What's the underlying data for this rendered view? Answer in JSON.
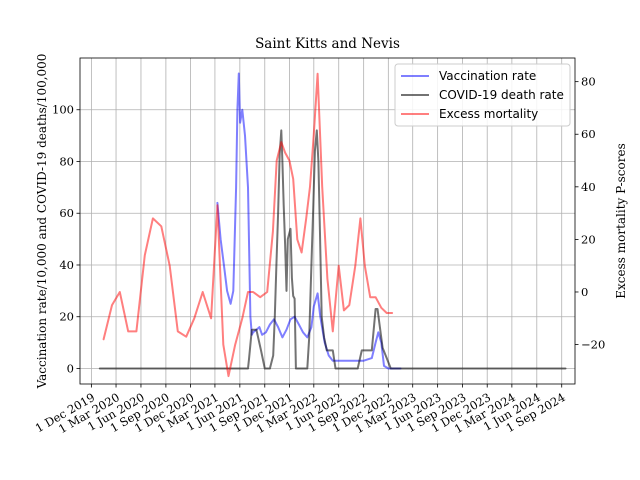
{
  "chart_data": {
    "type": "line",
    "title": "Saint Kitts and Nevis",
    "ylabel_left": "Vaccination rate/10,000 and COVID-19 deaths/100,000",
    "ylabel_right": "Excess mortality P-scores",
    "xlabel": "",
    "grid": true,
    "legend_position": "top-right",
    "xlim": [
      "2019-10-20",
      "2024-10-20"
    ],
    "ylim_left": [
      -6,
      120
    ],
    "ylim_right": [
      -35,
      89
    ],
    "x_ticks": [
      "1 Dec 2019",
      "1 Mar 2020",
      "1 Jun 2020",
      "1 Sep 2020",
      "1 Dec 2020",
      "1 Mar 2021",
      "1 Jun 2021",
      "1 Sep 2021",
      "1 Dec 2021",
      "1 Mar 2022",
      "1 Jun 2022",
      "1 Sep 2022",
      "1 Dec 2022",
      "1 Mar 2023",
      "1 Jun 2023",
      "1 Sep 2023",
      "1 Dec 2023",
      "1 Mar 2024",
      "1 Jun 2024",
      "1 Sep 2024"
    ],
    "x_tick_dates": [
      "2019-12-01",
      "2020-03-01",
      "2020-06-01",
      "2020-09-01",
      "2020-12-01",
      "2021-03-01",
      "2021-06-01",
      "2021-09-01",
      "2021-12-01",
      "2022-03-01",
      "2022-06-01",
      "2022-09-01",
      "2022-12-01",
      "2023-03-01",
      "2023-06-01",
      "2023-09-01",
      "2023-12-01",
      "2024-03-01",
      "2024-06-01",
      "2024-09-01"
    ],
    "y_ticks_left": [
      0,
      20,
      40,
      60,
      80,
      100
    ],
    "y_ticks_right": [
      -20,
      0,
      20,
      40,
      60,
      80
    ],
    "series": [
      {
        "name": "Vaccination rate",
        "axis": "left",
        "color": "#0000ff",
        "opacity": 0.5,
        "x": [
          "2021-03-10",
          "2021-03-22",
          "2021-04-03",
          "2021-04-15",
          "2021-04-28",
          "2021-05-08",
          "2021-05-18",
          "2021-05-23",
          "2021-05-28",
          "2021-06-02",
          "2021-06-10",
          "2021-06-20",
          "2021-07-01",
          "2021-07-10",
          "2021-07-15",
          "2021-07-20",
          "2021-08-01",
          "2021-08-12",
          "2021-08-22",
          "2021-09-05",
          "2021-09-20",
          "2021-10-05",
          "2021-10-20",
          "2021-11-05",
          "2021-11-20",
          "2021-12-05",
          "2021-12-20",
          "2022-01-05",
          "2022-01-20",
          "2022-02-05",
          "2022-02-20",
          "2022-03-01",
          "2022-03-15",
          "2022-03-25",
          "2022-04-10",
          "2022-04-25",
          "2022-05-10",
          "2022-06-01",
          "2022-07-01",
          "2022-08-01",
          "2022-09-01",
          "2022-10-01",
          "2022-10-15",
          "2022-10-25",
          "2022-11-05",
          "2022-11-15",
          "2022-12-01",
          "2023-01-15"
        ],
        "values": [
          64,
          50,
          40,
          30,
          25,
          30,
          70,
          100,
          114,
          95,
          100,
          90,
          70,
          20,
          13,
          14,
          15,
          16,
          13,
          14,
          17,
          19,
          16,
          12,
          15,
          19,
          20,
          17,
          14,
          12,
          16,
          24,
          29,
          20,
          10,
          5,
          3,
          3,
          3,
          3,
          3,
          4,
          10,
          14,
          10,
          1,
          0,
          0
        ]
      },
      {
        "name": "COVID-19 death rate",
        "axis": "left",
        "color": "#000000",
        "opacity": 0.55,
        "x": [
          "2020-01-01",
          "2021-07-01",
          "2021-07-05",
          "2021-07-15",
          "2021-08-01",
          "2021-08-18",
          "2021-09-01",
          "2021-09-20",
          "2021-10-02",
          "2021-10-08",
          "2021-10-14",
          "2021-10-20",
          "2021-10-26",
          "2021-11-01",
          "2021-11-05",
          "2021-11-10",
          "2021-11-15",
          "2021-11-20",
          "2021-11-25",
          "2021-12-05",
          "2021-12-10",
          "2021-12-15",
          "2021-12-20",
          "2021-12-25",
          "2022-01-10",
          "2022-02-05",
          "2022-02-12",
          "2022-02-17",
          "2022-02-22",
          "2022-02-27",
          "2022-03-05",
          "2022-03-12",
          "2022-03-18",
          "2022-03-24",
          "2022-03-30",
          "2022-04-08",
          "2022-04-18",
          "2022-05-10",
          "2022-05-20",
          "2022-06-10",
          "2022-07-20",
          "2022-08-10",
          "2022-08-25",
          "2022-09-10",
          "2022-10-01",
          "2022-10-15",
          "2022-10-22",
          "2022-11-10",
          "2022-12-10",
          "2023-06-01",
          "2024-09-15"
        ],
        "values": [
          0,
          0,
          4,
          15,
          15,
          7,
          0,
          0,
          5,
          20,
          40,
          60,
          83,
          92,
          80,
          63,
          48,
          30,
          50,
          54,
          35,
          28,
          27,
          0,
          0,
          0,
          12,
          30,
          46,
          63,
          84,
          92,
          80,
          52,
          20,
          12,
          7,
          7,
          0,
          0,
          0,
          0,
          7,
          7,
          7,
          23,
          23,
          8,
          0,
          0,
          0
        ]
      },
      {
        "name": "Excess mortality",
        "axis": "right",
        "color": "#ff0000",
        "opacity": 0.5,
        "x": [
          "2020-01-15",
          "2020-02-15",
          "2020-03-15",
          "2020-04-15",
          "2020-05-15",
          "2020-06-15",
          "2020-07-15",
          "2020-08-15",
          "2020-09-15",
          "2020-10-15",
          "2020-11-15",
          "2020-12-15",
          "2021-01-15",
          "2021-02-15",
          "2021-03-10",
          "2021-04-01",
          "2021-04-20",
          "2021-05-15",
          "2021-06-10",
          "2021-07-01",
          "2021-07-20",
          "2021-08-15",
          "2021-09-10",
          "2021-10-01",
          "2021-10-15",
          "2021-11-01",
          "2021-11-15",
          "2021-12-01",
          "2021-12-15",
          "2021-12-30",
          "2022-01-15",
          "2022-02-01",
          "2022-02-15",
          "2022-03-01",
          "2022-03-15",
          "2022-04-01",
          "2022-04-20",
          "2022-05-10",
          "2022-06-01",
          "2022-06-20",
          "2022-07-10",
          "2022-08-01",
          "2022-08-20",
          "2022-09-05",
          "2022-09-25",
          "2022-10-15",
          "2022-11-05",
          "2022-11-25",
          "2022-12-15"
        ],
        "values": [
          -18,
          -5,
          0,
          -15,
          -15,
          14,
          28,
          25,
          10,
          -15,
          -17,
          -10,
          0,
          -10,
          33,
          -20,
          -32,
          -20,
          -10,
          0,
          0,
          -2,
          0,
          23,
          50,
          57,
          53,
          50,
          43,
          20,
          15,
          28,
          40,
          60,
          83,
          40,
          5,
          -15,
          10,
          -7,
          -5,
          10,
          28,
          10,
          -2,
          -2,
          -6,
          -8,
          -8
        ]
      }
    ]
  }
}
